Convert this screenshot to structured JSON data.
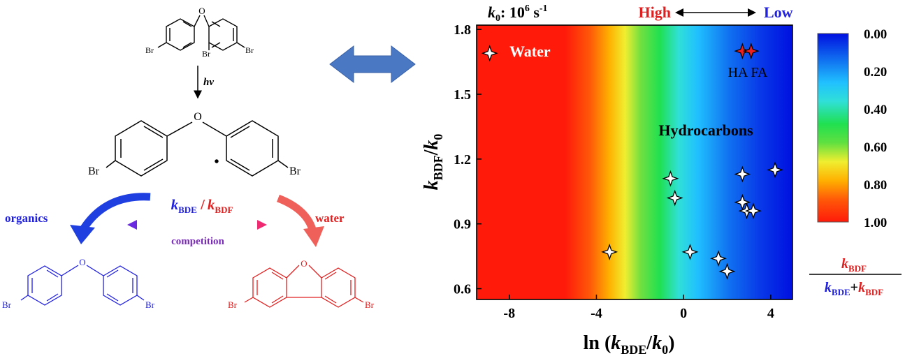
{
  "scheme": {
    "hv": "hv",
    "br": "Br",
    "o": "O",
    "radical_dot": "•",
    "ratio_k1": "k",
    "ratio_k1_sub": "BDE",
    "ratio_slash": "/",
    "ratio_k2": "k",
    "ratio_k2_sub": "BDF",
    "organics": "organics",
    "water": "water",
    "competition": "competition",
    "colors": {
      "blue": "#2020e0",
      "red": "#e02020",
      "arrow_blue": "#1f3fe0",
      "arrow_red": "#f0605a",
      "double_arrow": "#4a78c2"
    }
  },
  "header": {
    "k0_k": "k",
    "k0_sub": "0",
    "k0_rest": ": 10",
    "k0_exp": "6",
    "k0_unit": " s",
    "k0_unit_exp": "-1",
    "high": "High",
    "low": "Low"
  },
  "chart_data": {
    "type": "heatmap",
    "xlabel_pre": "ln (",
    "xlabel_k": "k",
    "xlabel_sub": "BDE",
    "xlabel_mid": "/",
    "xlabel_k0": "k",
    "xlabel_k0_sub": "0",
    "xlabel_post": ")",
    "ylabel_k": "k",
    "ylabel_sub": "BDF",
    "ylabel_mid": "/",
    "ylabel_k0": "k",
    "ylabel_k0_sub": "0",
    "xlim": [
      -9.5,
      5.0
    ],
    "ylim": [
      0.55,
      1.82
    ],
    "xticks": [
      -8,
      -4,
      0,
      4
    ],
    "xtick_labels": [
      "-8",
      "-4",
      "0",
      "4"
    ],
    "yticks": [
      0.6,
      0.9,
      1.2,
      1.5,
      1.8
    ],
    "ytick_labels": [
      "0.6",
      "0.9",
      "1.2",
      "1.5",
      "1.8"
    ],
    "colorbar": {
      "ticks": [
        0.0,
        0.2,
        0.4,
        0.6,
        0.8,
        1.0
      ],
      "tick_labels": [
        "0.00",
        "0.20",
        "0.40",
        "0.60",
        "0.80",
        "1.00"
      ],
      "label_num_k": "k",
      "label_num_sub": "BDF",
      "label_den_k1": "k",
      "label_den_sub1": "BDE",
      "label_den_plus": "+",
      "label_den_k2": "k",
      "label_den_sub2": "BDF"
    },
    "annotations": {
      "water": "Water",
      "ha_fa": "HA FA",
      "hydrocarbons": "Hydrocarbons"
    },
    "points": {
      "water": [
        {
          "x": -8.9,
          "y": 1.69
        }
      ],
      "ha_fa": [
        {
          "x": 2.7,
          "y": 1.7
        },
        {
          "x": 3.1,
          "y": 1.7
        }
      ],
      "hydrocarbons": [
        {
          "x": 2.7,
          "y": 1.13
        },
        {
          "x": 4.2,
          "y": 1.15
        },
        {
          "x": -0.6,
          "y": 1.11
        },
        {
          "x": -0.4,
          "y": 1.02
        },
        {
          "x": 2.7,
          "y": 1.0
        },
        {
          "x": 2.9,
          "y": 0.96
        },
        {
          "x": 3.2,
          "y": 0.96
        },
        {
          "x": -3.4,
          "y": 0.77
        },
        {
          "x": 0.3,
          "y": 0.77
        },
        {
          "x": 1.6,
          "y": 0.74
        },
        {
          "x": 2.0,
          "y": 0.68
        }
      ]
    }
  }
}
